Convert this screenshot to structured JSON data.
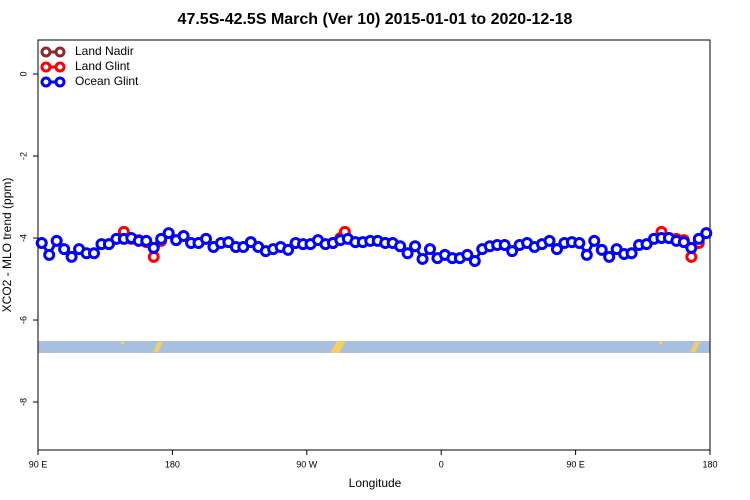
{
  "chart_data": {
    "type": "line",
    "title": "47.5S-42.5S March (Ver 10)   2015-01-01 to 2020-12-18",
    "x_label": "Longitude",
    "y_label": "XCO2 - MLO trend (ppm)",
    "xlim": [
      90,
      540
    ],
    "ylim": [
      0.83,
      -9.17
    ],
    "xticks": [
      {
        "value": 90,
        "label": "90 E"
      },
      {
        "value": 180,
        "label": "180"
      },
      {
        "value": 270,
        "label": "90 W"
      },
      {
        "value": 360,
        "label": "0"
      },
      {
        "value": 450,
        "label": "90 E"
      },
      {
        "value": 540,
        "label": "180"
      }
    ],
    "yticks": [
      0,
      -2,
      -4,
      -6,
      -8
    ],
    "legend": "top-left",
    "series": [
      {
        "name": "Land Nadir",
        "color": "#8b2b2b",
        "x": [],
        "values": []
      },
      {
        "name": "Land Glint",
        "color": "#ff0000",
        "x": [
          147.5,
          152.5,
          157.5,
          162.5,
          167.5,
          172.5,
          177.5,
          287.5,
          292.5,
          295.5,
          300.5,
          507.5,
          512.5,
          517.5,
          522.5,
          527.5,
          532.5
        ],
        "values": [
          -3.85,
          -4.02,
          -4.05,
          -4.1,
          -4.46,
          -4.07,
          null,
          -4.12,
          -4.0,
          -3.85,
          null,
          -3.85,
          -4.0,
          -4.02,
          -4.05,
          -4.46,
          -4.12
        ]
      },
      {
        "name": "Ocean Glint",
        "color": "#0000ff",
        "x": [
          92.5,
          97.5,
          102.5,
          107.5,
          112.5,
          117.5,
          122.5,
          127.5,
          132.5,
          137.5,
          142.5,
          147.5,
          152.5,
          157.5,
          162.5,
          167.5,
          172.5,
          177.5,
          182.5,
          187.5,
          192.5,
          197.5,
          202.5,
          207.5,
          212.5,
          217.5,
          222.5,
          227.5,
          232.5,
          237.5,
          242.5,
          247.5,
          252.5,
          257.5,
          262.5,
          267.5,
          272.5,
          277.5,
          282.5,
          287.5,
          292.5,
          297.5,
          302.5,
          307.5,
          312.5,
          317.5,
          322.5,
          327.5,
          332.5,
          337.5,
          342.5,
          347.5,
          352.5,
          357.5,
          362.5,
          367.5,
          372.5,
          377.5,
          382.5,
          387.5,
          392.5,
          397.5,
          402.5,
          407.5,
          412.5,
          417.5,
          422.5,
          427.5,
          432.5,
          437.5,
          442.5,
          447.5,
          452.5,
          457.5,
          462.5,
          467.5,
          472.5,
          477.5,
          482.5,
          487.5,
          492.5,
          497.5,
          502.5,
          507.5,
          512.5,
          517.5,
          522.5,
          527.5,
          532.5,
          537.5
        ],
        "values": [
          -4.12,
          -4.41,
          -4.07,
          -4.27,
          -4.46,
          -4.27,
          -4.37,
          -4.37,
          -4.15,
          -4.15,
          -4.02,
          -4.02,
          -4.0,
          -4.07,
          -4.07,
          -4.24,
          -4.02,
          -3.88,
          -4.05,
          -3.95,
          -4.12,
          -4.12,
          -4.02,
          -4.22,
          -4.12,
          -4.1,
          -4.22,
          -4.22,
          -4.1,
          -4.22,
          -4.32,
          -4.27,
          -4.22,
          -4.29,
          -4.12,
          -4.15,
          -4.15,
          -4.05,
          -4.15,
          -4.12,
          -4.05,
          -4.02,
          -4.1,
          -4.1,
          -4.07,
          -4.07,
          -4.12,
          -4.12,
          -4.2,
          -4.37,
          -4.2,
          -4.51,
          -4.27,
          -4.49,
          -4.41,
          -4.49,
          -4.49,
          -4.41,
          -4.56,
          -4.27,
          -4.2,
          -4.17,
          -4.17,
          -4.32,
          -4.17,
          -4.12,
          -4.22,
          -4.15,
          -4.07,
          -4.27,
          -4.12,
          -4.1,
          -4.12,
          -4.41,
          -4.07,
          -4.29,
          -4.46,
          -4.27,
          -4.39,
          -4.37,
          -4.17,
          -4.15,
          -4.02,
          -4.0,
          -4.0,
          -4.07,
          -4.1,
          -4.24,
          -4.02,
          -3.88
        ]
      }
    ]
  }
}
